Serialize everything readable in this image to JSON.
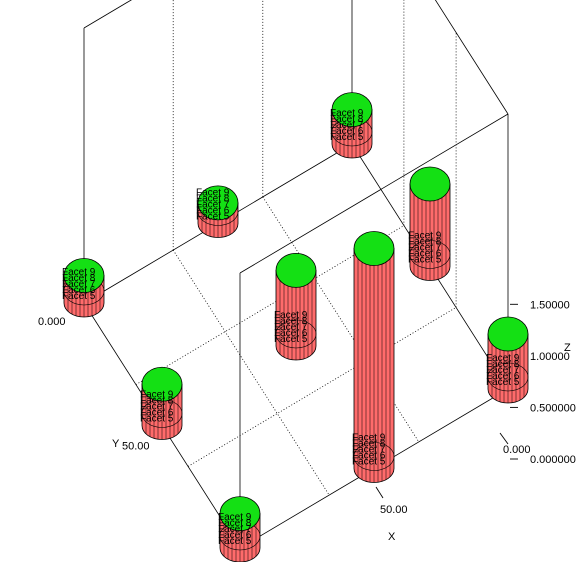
{
  "chart_data": {
    "type": "3d-cylinder-bars",
    "x_axis_label": "X",
    "y_axis_label": "Y",
    "z_axis_label": "Z",
    "x_ticks": [
      "0.000",
      "50.00"
    ],
    "y_ticks": [
      "0.000",
      "50.00"
    ],
    "z_ticks": [
      "0.000000",
      "0.500000",
      "1.00000",
      "1.50000"
    ],
    "point_labels": [
      "Facet 9",
      "Facet 8",
      "Facet 7",
      "Facet 6",
      "Facet 5"
    ],
    "zlim": [
      0,
      2.0
    ],
    "grid": "dotted",
    "colors": {
      "side": "#ff6b6b",
      "top": "#14e014",
      "stroke": "#000000"
    },
    "points": [
      {
        "x": 0,
        "y": 0,
        "z": 0.2
      },
      {
        "x": 0,
        "y": 50,
        "z": 0.15
      },
      {
        "x": 0,
        "y": 100,
        "z": 0.25
      },
      {
        "x": 50,
        "y": 0,
        "z": 0.3
      },
      {
        "x": 50,
        "y": 50,
        "z": 0.55
      },
      {
        "x": 50,
        "y": 100,
        "z": 0.6
      },
      {
        "x": 100,
        "y": 0,
        "z": 0.25
      },
      {
        "x": 100,
        "y": 50,
        "z": 1.6
      },
      {
        "x": 100,
        "y": 100,
        "z": 0.4
      }
    ]
  }
}
